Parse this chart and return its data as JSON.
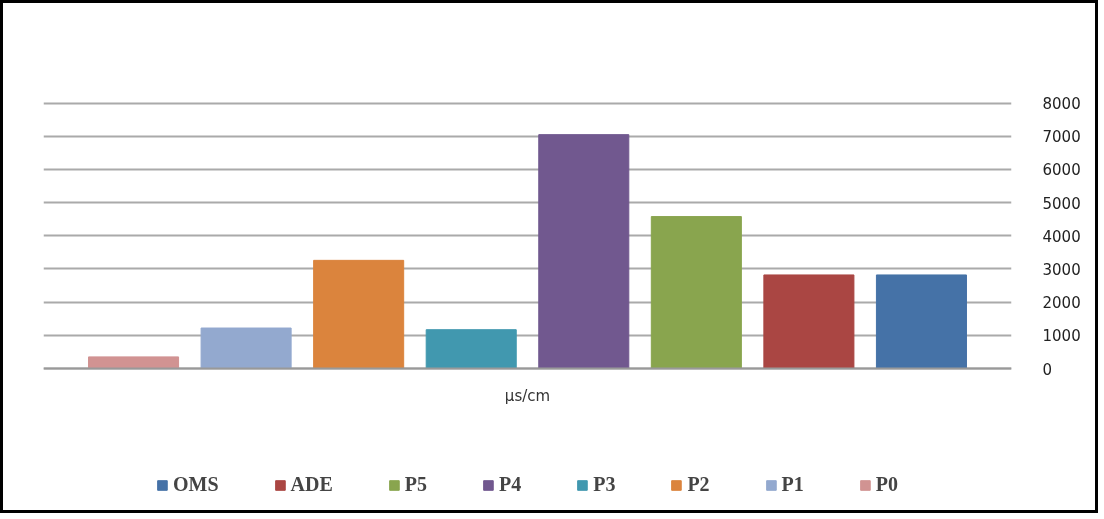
{
  "chart_data": {
    "type": "bar",
    "categories": [
      null
    ],
    "xlabel": "µs/cm",
    "series": [
      {
        "name": "OMS",
        "color": "#4572a7",
        "values": [
          2820
        ]
      },
      {
        "name": "ADE",
        "color": "#aa4643",
        "values": [
          2820
        ]
      },
      {
        "name": "P5",
        "color": "#89a54e",
        "values": [
          4580
        ]
      },
      {
        "name": "P4",
        "color": "#71588f",
        "values": [
          7050
        ]
      },
      {
        "name": "P3",
        "color": "#4198af",
        "values": [
          1170
        ]
      },
      {
        "name": "P2",
        "color": "#db843d",
        "values": [
          3260
        ]
      },
      {
        "name": "P1",
        "color": "#93a9cf",
        "values": [
          1220
        ]
      },
      {
        "name": "P0",
        "color": "#d19392",
        "values": [
          350
        ]
      }
    ],
    "ylim": [
      0,
      8000
    ],
    "yticks": [
      0,
      1000,
      2000,
      3000,
      4000,
      5000,
      6000,
      7000,
      8000
    ],
    "grid": "y",
    "legend": "bottom"
  }
}
